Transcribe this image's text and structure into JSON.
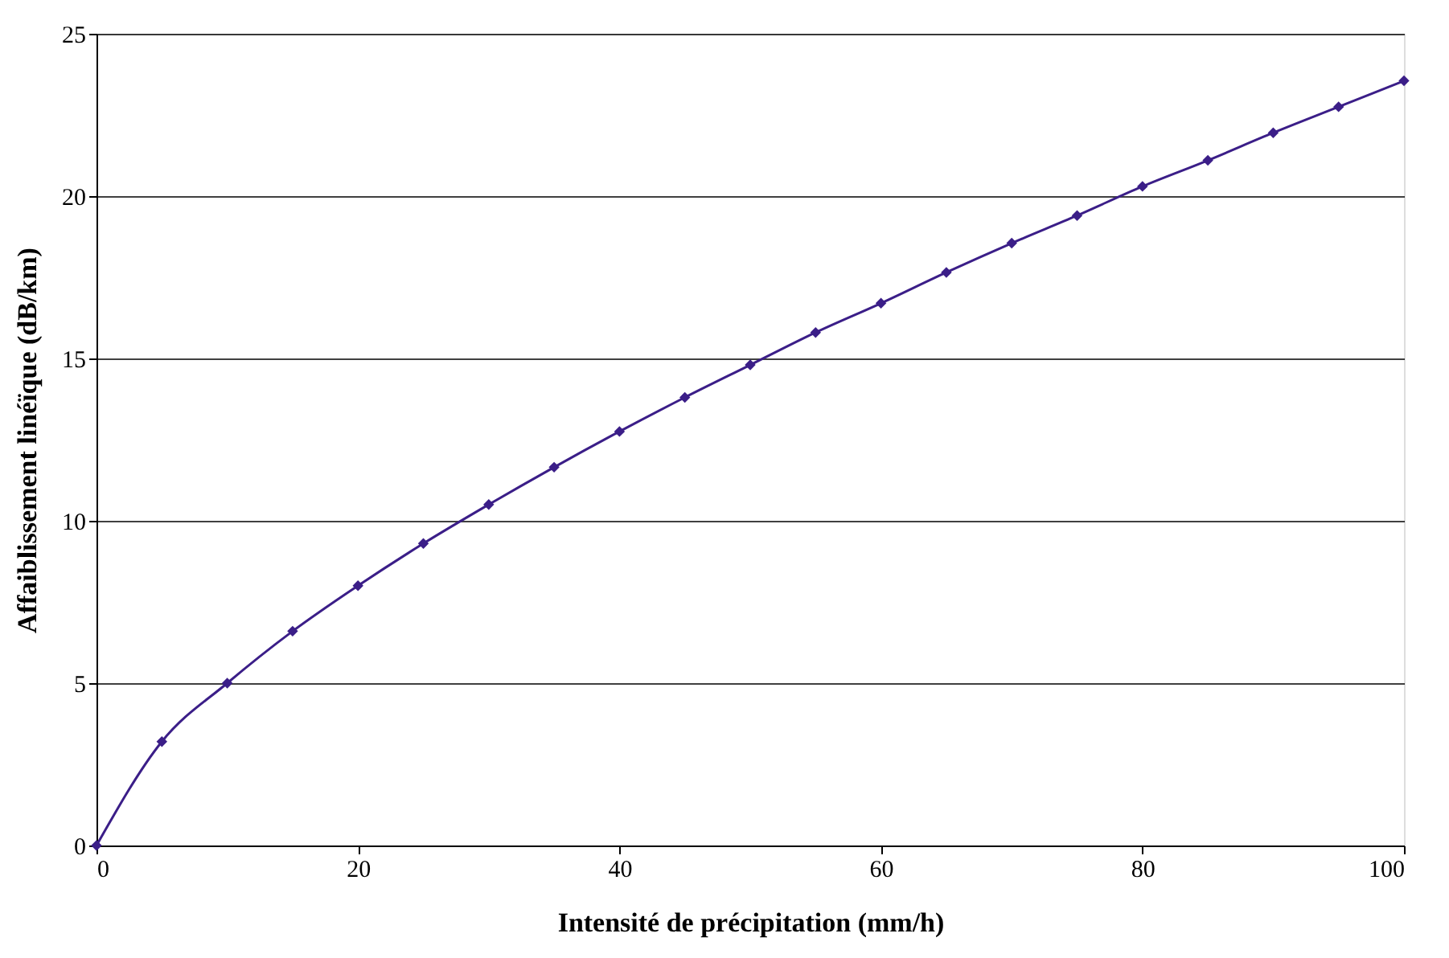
{
  "chart_data": {
    "type": "line",
    "xlabel": "Intensité de précipitation (mm/h)",
    "ylabel": "Affaiblissement linéïque (dB/km)",
    "x": [
      0,
      5,
      10,
      15,
      20,
      25,
      30,
      35,
      40,
      45,
      50,
      55,
      60,
      65,
      70,
      75,
      80,
      85,
      90,
      95,
      100
    ],
    "series": [
      {
        "color": "#3b1e88",
        "values": [
          0,
          3.2,
          5.0,
          6.6,
          8.0,
          9.3,
          10.5,
          11.65,
          12.75,
          13.8,
          14.8,
          15.8,
          16.7,
          17.65,
          18.55,
          19.4,
          20.3,
          21.1,
          21.95,
          22.75,
          23.55
        ]
      }
    ],
    "xlim": [
      0,
      100
    ],
    "xticks": [
      0,
      20,
      40,
      60,
      80,
      100
    ],
    "ylim": [
      0,
      25
    ],
    "yticks": [
      0,
      5,
      10,
      15,
      20,
      25
    ],
    "grid": "y",
    "marker": "diamond",
    "line_style": "solid"
  }
}
